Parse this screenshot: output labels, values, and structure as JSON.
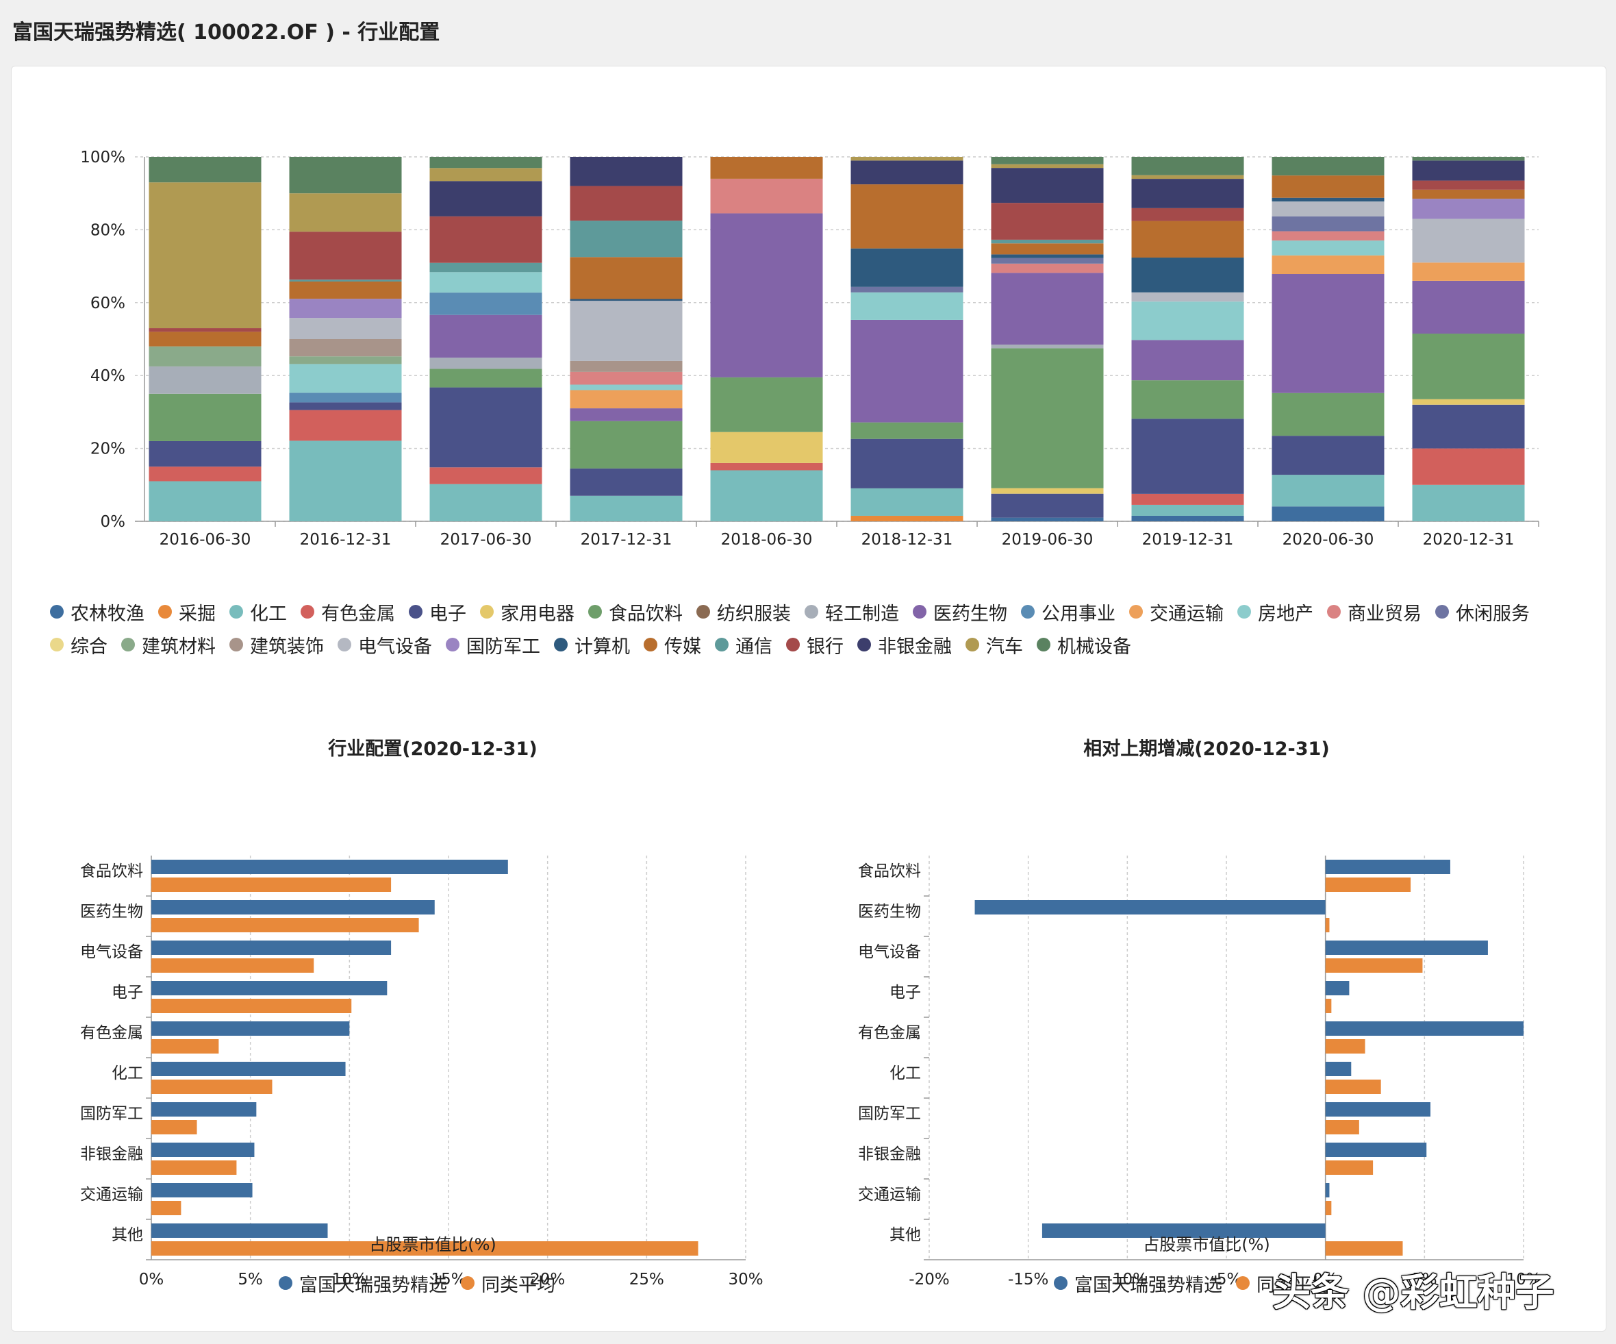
{
  "page_title": "富国天瑞强势精选( 100022.OF ) - 行业配置",
  "watermark": "头条 @彩虹种子",
  "colors": {
    "农林牧渔": "#3e6e9f",
    "采掘": "#e8893a",
    "化工": "#78bcbc",
    "有色金属": "#d2605c",
    "电子": "#4a5289",
    "家用电器": "#e4c86a",
    "食品饮料": "#6e9e6a",
    "纺织服装": "#8a6a52",
    "轻工制造": "#a7aeb8",
    "医药生物": "#8264a8",
    "公用事业": "#5a8cb4",
    "交通运输": "#eda05a",
    "房地产": "#8ccccc",
    "商业贸易": "#da8282",
    "休闲服务": "#6e74a2",
    "综合": "#ead88a",
    "建筑材料": "#8aaa8a",
    "建筑装饰": "#a8948a",
    "电气设备": "#b4b8c2",
    "国防军工": "#9a84c2",
    "计算机": "#2e5a7e",
    "传媒": "#b86e2e",
    "通信": "#5e9a9a",
    "银行": "#a44a4a",
    "非银金融": "#3c3e6c",
    "汽车": "#b09a52",
    "机械设备": "#5a8260",
    "fund": "#3e6e9f",
    "peer": "#e8893a"
  },
  "chart_data": [
    {
      "type": "bar",
      "stacked": true,
      "percent": true,
      "title": "",
      "categories": [
        "2016-06-30",
        "2016-12-31",
        "2017-06-30",
        "2017-12-31",
        "2018-06-30",
        "2018-12-31",
        "2019-06-30",
        "2019-12-31",
        "2020-06-30",
        "2020-12-31"
      ],
      "ylim": [
        0,
        100
      ],
      "yticks": [
        "0%",
        "20%",
        "40%",
        "60%",
        "80%",
        "100%"
      ],
      "grid": true,
      "legend_position": "bottom",
      "series": [
        {
          "name": "农林牧渔",
          "values": [
            0,
            0,
            0,
            0,
            0,
            0,
            1,
            1.5,
            4,
            0
          ]
        },
        {
          "name": "采掘",
          "values": [
            0,
            0,
            0,
            0,
            0,
            1.5,
            0,
            0,
            0,
            0
          ]
        },
        {
          "name": "化工",
          "values": [
            11,
            21,
            10,
            7,
            14,
            7.5,
            0,
            3,
            8.5,
            10
          ]
        },
        {
          "name": "有色金属",
          "values": [
            4,
            8,
            4.5,
            0,
            2,
            0,
            0,
            3,
            0,
            10
          ]
        },
        {
          "name": "电子",
          "values": [
            7,
            2,
            21.5,
            7.5,
            0,
            13.5,
            6.5,
            20.5,
            10.5,
            12
          ]
        },
        {
          "name": "家用电器",
          "values": [
            0,
            0,
            0,
            0,
            8.5,
            0,
            1.5,
            0,
            0,
            1.5
          ]
        },
        {
          "name": "食品饮料",
          "values": [
            13,
            0,
            5,
            13,
            15,
            4.5,
            38,
            10.5,
            11.5,
            18
          ]
        },
        {
          "name": "纺织服装",
          "values": [
            0,
            0,
            0,
            0,
            0,
            0,
            0,
            0,
            0,
            0
          ]
        },
        {
          "name": "轻工制造",
          "values": [
            7.5,
            0,
            3,
            0,
            0,
            0,
            1,
            0,
            0,
            0
          ]
        },
        {
          "name": "医药生物",
          "values": [
            0,
            0,
            11.5,
            3.5,
            45,
            28,
            19.5,
            11,
            32,
            14.5
          ]
        },
        {
          "name": "公用事业",
          "values": [
            0,
            2.5,
            6,
            0,
            0,
            0,
            0,
            0,
            0,
            0
          ]
        },
        {
          "name": "交通运输",
          "values": [
            0,
            0,
            0,
            5,
            0,
            0,
            0,
            0,
            5,
            5
          ]
        },
        {
          "name": "房地产",
          "values": [
            0,
            7.5,
            5.5,
            1.5,
            0,
            7.5,
            0,
            10.5,
            4,
            0
          ]
        },
        {
          "name": "商业贸易",
          "values": [
            0,
            0,
            0,
            3.5,
            9.5,
            0,
            2.5,
            0,
            2.5,
            0
          ]
        },
        {
          "name": "休闲服务",
          "values": [
            0,
            0,
            0,
            0,
            0,
            1.5,
            1.5,
            0,
            4,
            0
          ]
        },
        {
          "name": "综合",
          "values": [
            0,
            0,
            0,
            0,
            0,
            0,
            0,
            0,
            0,
            0
          ]
        },
        {
          "name": "建筑材料",
          "values": [
            5.5,
            2,
            0,
            0,
            0,
            0,
            0,
            0,
            0,
            0
          ]
        },
        {
          "name": "建筑装饰",
          "values": [
            0,
            4.5,
            0,
            3,
            0,
            0,
            0,
            0,
            0,
            0
          ]
        },
        {
          "name": "电气设备",
          "values": [
            0,
            5.5,
            0,
            16.5,
            0,
            0,
            0,
            2.5,
            4,
            12
          ]
        },
        {
          "name": "国防军工",
          "values": [
            0,
            5,
            0,
            0,
            0,
            0,
            0,
            0,
            0,
            5.5
          ]
        },
        {
          "name": "计算机",
          "values": [
            0,
            0,
            0,
            0.5,
            0,
            10.5,
            1,
            9.5,
            1,
            0
          ]
        },
        {
          "name": "传媒",
          "values": [
            4,
            4.5,
            0,
            11.5,
            6,
            17.5,
            3,
            10,
            6,
            2.5
          ]
        },
        {
          "name": "通信",
          "values": [
            0,
            0.5,
            2.5,
            10,
            0,
            0,
            1,
            0,
            0,
            0
          ]
        },
        {
          "name": "银行",
          "values": [
            1,
            12.5,
            12.5,
            9.5,
            0,
            0,
            10,
            3.5,
            0,
            2.5
          ]
        },
        {
          "name": "非银金融",
          "values": [
            0,
            0,
            9.5,
            8,
            0,
            6.5,
            9.5,
            8,
            0,
            5.5
          ]
        },
        {
          "name": "汽车",
          "values": [
            40,
            10,
            3.5,
            0,
            0,
            1,
            1,
            1,
            0,
            0
          ]
        },
        {
          "name": "机械设备",
          "values": [
            7,
            9.5,
            3,
            0,
            0,
            0,
            2,
            5,
            5,
            1
          ]
        }
      ]
    },
    {
      "type": "bar",
      "orientation": "horizontal",
      "title": "行业配置(2020-12-31)",
      "xlabel": "占股票市值比(%)",
      "categories": [
        "食品饮料",
        "医药生物",
        "电气设备",
        "电子",
        "有色金属",
        "化工",
        "国防军工",
        "非银金融",
        "交通运输",
        "其他"
      ],
      "xlim": [
        0,
        30
      ],
      "xticks": [
        "0%",
        "5%",
        "10%",
        "15%",
        "20%",
        "25%",
        "30%"
      ],
      "series": [
        {
          "name": "富国天瑞强势精选",
          "values": [
            18.0,
            14.3,
            12.1,
            11.9,
            10.0,
            9.8,
            5.3,
            5.2,
            5.1,
            8.9
          ]
        },
        {
          "name": "同类平均",
          "values": [
            12.1,
            13.5,
            8.2,
            10.1,
            3.4,
            6.1,
            2.3,
            4.3,
            1.5,
            27.6
          ]
        }
      ]
    },
    {
      "type": "bar",
      "orientation": "horizontal",
      "title": "相对上期增减(2020-12-31)",
      "xlabel": "占股票市值比(%)",
      "categories": [
        "食品饮料",
        "医药生物",
        "电气设备",
        "电子",
        "有色金属",
        "化工",
        "国防军工",
        "非银金融",
        "交通运输",
        "其他"
      ],
      "xlim": [
        -20,
        10
      ],
      "xticks": [
        "-20%",
        "-15%",
        "-10%",
        "-5%",
        "0%",
        "5%",
        "10%"
      ],
      "series": [
        {
          "name": "富国天瑞强势精选",
          "values": [
            6.3,
            -17.7,
            8.2,
            1.2,
            10.0,
            1.3,
            5.3,
            5.1,
            0.2,
            -14.3
          ]
        },
        {
          "name": "同类平均",
          "values": [
            4.3,
            0.2,
            4.9,
            0.3,
            2.0,
            2.8,
            1.7,
            2.4,
            0.3,
            3.9
          ]
        }
      ]
    }
  ]
}
